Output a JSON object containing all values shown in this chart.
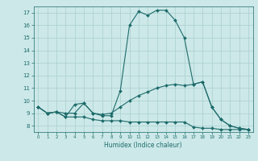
{
  "title": "",
  "xlabel": "Humidex (Indice chaleur)",
  "xlim": [
    -0.5,
    23.5
  ],
  "ylim": [
    7.5,
    17.5
  ],
  "xticks": [
    0,
    1,
    2,
    3,
    4,
    5,
    6,
    7,
    8,
    9,
    10,
    11,
    12,
    13,
    14,
    15,
    16,
    17,
    18,
    19,
    20,
    21,
    22,
    23
  ],
  "yticks": [
    8,
    9,
    10,
    11,
    12,
    13,
    14,
    15,
    16,
    17
  ],
  "bg_color": "#cce8e8",
  "line_color": "#1e6b6b",
  "grid_color": "#aacfcf",
  "line1": {
    "x": [
      0,
      1,
      2,
      3,
      4,
      5,
      6,
      7,
      8,
      9,
      10,
      11,
      12,
      13,
      14,
      15,
      16,
      17,
      18,
      19,
      20,
      21,
      22,
      23
    ],
    "y": [
      9.5,
      9.0,
      9.1,
      8.7,
      9.7,
      9.8,
      9.0,
      8.8,
      8.8,
      10.8,
      16.0,
      17.1,
      16.8,
      17.2,
      17.2,
      16.4,
      15.0,
      11.3,
      11.5,
      9.5,
      8.5,
      8.0,
      7.8,
      7.7
    ]
  },
  "line2": {
    "x": [
      0,
      1,
      2,
      3,
      4,
      5,
      6,
      7,
      8,
      9,
      10,
      11,
      12,
      13,
      14,
      15,
      16,
      17,
      18,
      19,
      20,
      21,
      22,
      23
    ],
    "y": [
      9.5,
      9.0,
      9.1,
      9.0,
      9.0,
      9.8,
      9.0,
      8.9,
      9.0,
      9.5,
      10.0,
      10.4,
      10.7,
      11.0,
      11.2,
      11.3,
      11.2,
      11.3,
      11.5,
      9.5,
      8.5,
      8.0,
      7.8,
      7.7
    ]
  },
  "line3": {
    "x": [
      0,
      1,
      2,
      3,
      4,
      5,
      6,
      7,
      8,
      9,
      10,
      11,
      12,
      13,
      14,
      15,
      16,
      17,
      18,
      19,
      20,
      21,
      22,
      23
    ],
    "y": [
      9.5,
      9.0,
      9.1,
      8.7,
      8.7,
      8.7,
      8.5,
      8.4,
      8.4,
      8.4,
      8.3,
      8.3,
      8.3,
      8.3,
      8.3,
      8.3,
      8.3,
      7.9,
      7.8,
      7.8,
      7.7,
      7.7,
      7.7,
      7.7
    ]
  }
}
